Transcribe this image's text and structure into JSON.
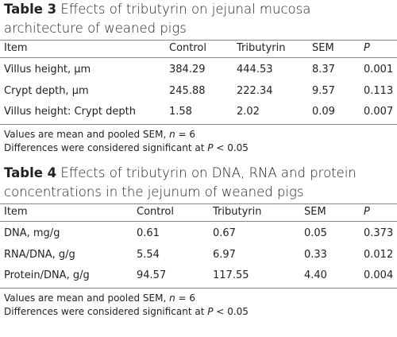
{
  "tables": [
    {
      "label": "Table 3",
      "caption": "Effects of tributyrin on jejunal mucosa architecture of weaned pigs",
      "header": [
        "Item",
        "Control",
        "Tributyrin",
        "SEM",
        "P"
      ],
      "rows": [
        [
          "Villus height, μm",
          "384.29",
          "444.53",
          "8.37",
          "0.001"
        ],
        [
          "Crypt depth, μm",
          "245.88",
          "222.34",
          "9.57",
          "0.113"
        ],
        [
          "Villus height: Crypt depth",
          "1.58",
          "2.02",
          "0.09",
          "0.007"
        ]
      ],
      "notes": [
        [
          "Values are mean and pooled SEM, ",
          "n",
          " = 6"
        ],
        [
          "Differences were considered significant at ",
          "P",
          " < 0.05"
        ]
      ]
    },
    {
      "label": "Table 4",
      "caption": "Effects of tributyrin on DNA, RNA and protein concentrations in the jejunum of weaned pigs",
      "header": [
        "Item",
        "Control",
        "Tributyrin",
        "SEM",
        "P"
      ],
      "rows": [
        [
          "DNA, mg/g",
          "0.61",
          "0.67",
          "0.05",
          "0.373"
        ],
        [
          "RNA/DNA, g/g",
          "5.54",
          "6.97",
          "0.33",
          "0.012"
        ],
        [
          "Protein/DNA, g/g",
          "94.57",
          "117.55",
          "4.40",
          "0.004"
        ]
      ],
      "notes": [
        [
          "Values are mean and pooled SEM, ",
          "n",
          " = 6"
        ],
        [
          "Differences were considered significant at ",
          "P",
          " < 0.05"
        ]
      ]
    }
  ]
}
